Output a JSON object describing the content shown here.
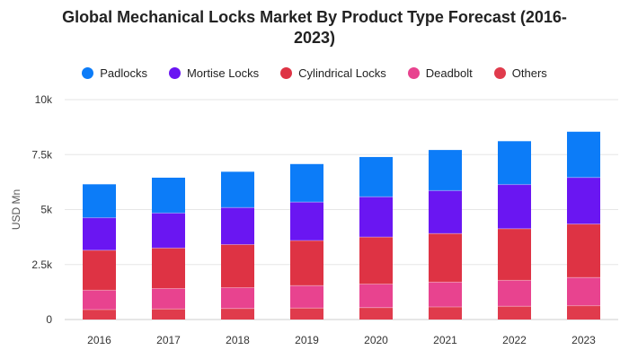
{
  "chart_data": {
    "type": "bar",
    "stacked": true,
    "title": "Global Mechanical Locks Market By Product Type Forecast (2016-2023)",
    "title_lines": [
      "Global Mechanical Locks Market By Product Type Forecast (2016-",
      "2023)"
    ],
    "ylabel": "USD Mn",
    "xlabel": "",
    "ylim": [
      0,
      10000
    ],
    "yticks": [
      0,
      2500,
      5000,
      7500,
      10000
    ],
    "ytick_labels": [
      "0",
      "2.5k",
      "5k",
      "7.5k",
      "10k"
    ],
    "grid": true,
    "legend_position": "top",
    "categories": [
      "2016",
      "2017",
      "2018",
      "2019",
      "2020",
      "2021",
      "2022",
      "2023"
    ],
    "series": [
      {
        "name": "Others",
        "color": "#e03b4c",
        "values": [
          450,
          480,
          500,
          520,
          540,
          570,
          600,
          630
        ]
      },
      {
        "name": "Deadbolt",
        "color": "#e8438f",
        "values": [
          880,
          930,
          950,
          1020,
          1070,
          1130,
          1180,
          1280
        ]
      },
      {
        "name": "Cylindrical Locks",
        "color": "#de3344",
        "values": [
          1820,
          1840,
          1960,
          2050,
          2140,
          2210,
          2350,
          2430
        ]
      },
      {
        "name": "Mortise Locks",
        "color": "#6a16f2",
        "values": [
          1480,
          1590,
          1680,
          1750,
          1830,
          1950,
          2010,
          2120
        ]
      },
      {
        "name": "Padlocks",
        "color": "#0c7cf8",
        "values": [
          1520,
          1610,
          1630,
          1730,
          1810,
          1850,
          1970,
          2080
        ]
      }
    ],
    "legend_order": [
      "Padlocks",
      "Mortise Locks",
      "Cylindrical Locks",
      "Deadbolt",
      "Others"
    ]
  }
}
